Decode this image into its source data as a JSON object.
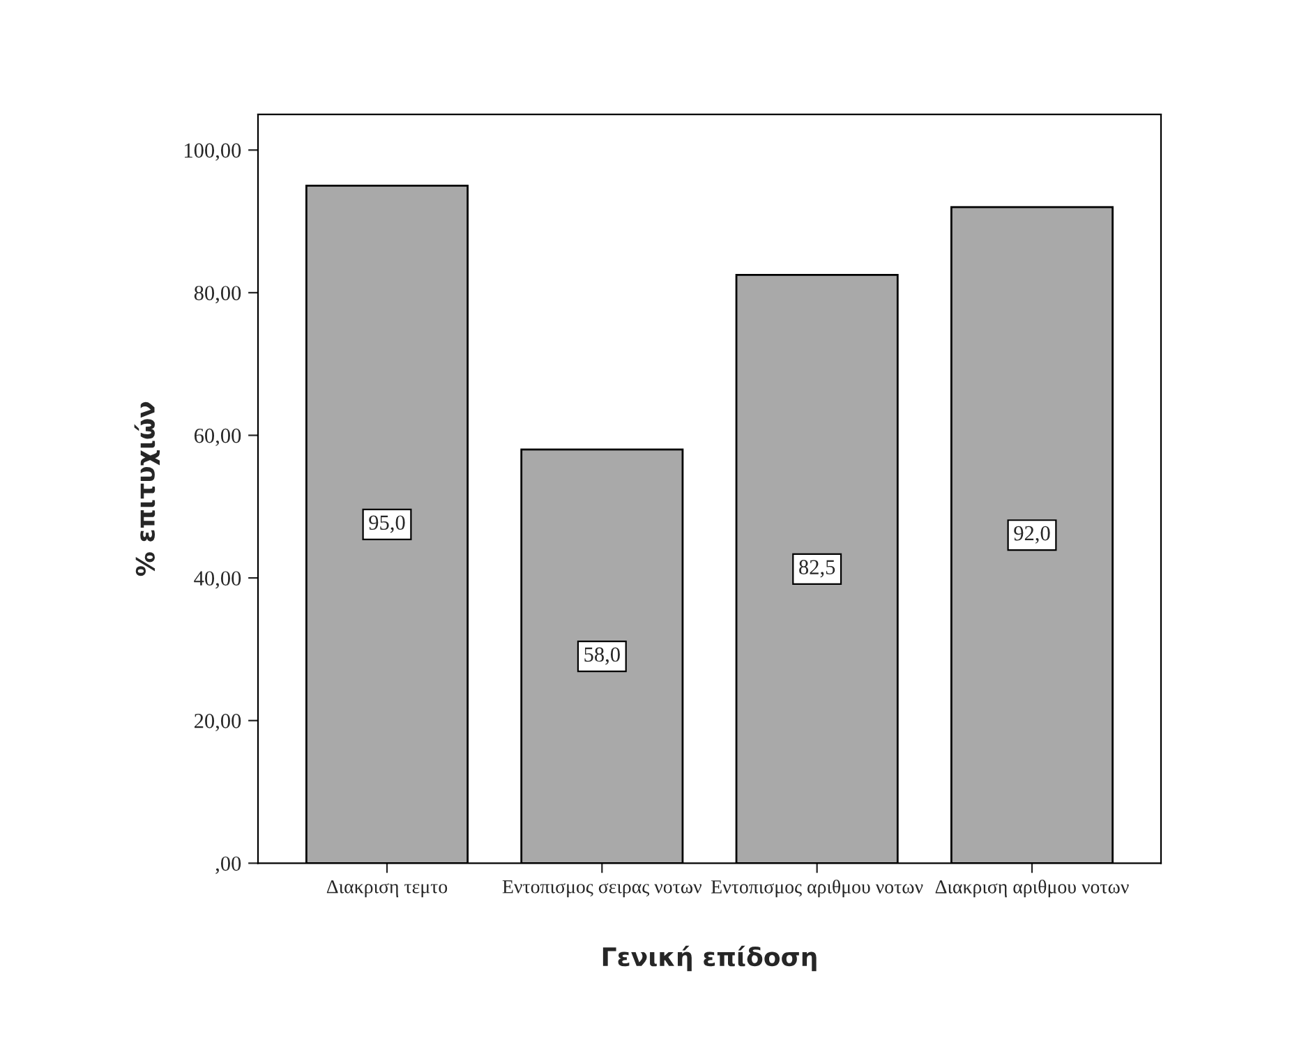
{
  "chart_data": {
    "type": "bar",
    "xlabel": "Γενική επίδοση",
    "ylabel": "% επιτυχιών",
    "categories": [
      "Διακριση τεμτο",
      "Εντοπισμος σειρας νοτων",
      "Εντοπισμος αριθμου νοτων",
      "Διακριση αριθμου νοτων"
    ],
    "values": [
      95.0,
      58.0,
      82.5,
      92.0
    ],
    "value_labels": [
      "95,0",
      "58,0",
      "82,5",
      "92,0"
    ],
    "color": "#a9a9a9",
    "ylim": [
      0,
      105
    ],
    "yticks": [
      {
        "value": 0,
        "label": ",00"
      },
      {
        "value": 20,
        "label": "20,00"
      },
      {
        "value": 40,
        "label": "40,00"
      },
      {
        "value": 60,
        "label": "60,00"
      },
      {
        "value": 80,
        "label": "80,00"
      },
      {
        "value": 100,
        "label": "100,00"
      }
    ],
    "grid": false
  }
}
